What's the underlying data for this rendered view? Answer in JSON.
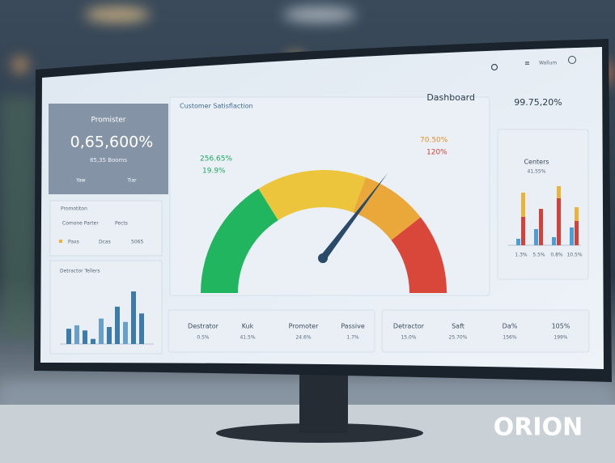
{
  "topbar": {
    "user": "Wallum"
  },
  "kpi": {
    "label": "Promister",
    "value": "0,65,600%",
    "sub": "85,35 Booms",
    "items": [
      "Yaw",
      "Tiar"
    ]
  },
  "summary": {
    "title": "Promotiton",
    "columns": [
      "Comone Parter",
      "Pects"
    ],
    "row": [
      "Paxs",
      "Dcas",
      "5065"
    ]
  },
  "detractor_chart": {
    "title": "Detractor Tellers",
    "values": [
      18,
      22,
      16,
      6,
      30,
      20,
      44,
      26,
      62,
      36
    ]
  },
  "gauge": {
    "title": "Customer Satisflaction",
    "heading": "Dashboard",
    "labels": [
      "256.65%",
      "19.9%",
      "70.50%",
      "120%"
    ]
  },
  "centers": {
    "headline": "99.75,20%",
    "title": "Centers",
    "subtitle": "41,55%",
    "categories": [
      "1.3%",
      "5.5%",
      "0.8%",
      "10.5%"
    ],
    "series": [
      {
        "color": "#4a9fd8",
        "values": [
          8,
          20,
          10,
          22
        ]
      },
      {
        "color": "#d2423a",
        "values": [
          35,
          45,
          58,
          30
        ]
      },
      {
        "color": "#eab43a",
        "values": [
          30,
          0,
          15,
          17
        ]
      }
    ]
  },
  "metrics": [
    {
      "label": "Destrator",
      "value": "0.5%"
    },
    {
      "label": "Kuk",
      "value": "41.5%"
    },
    {
      "label": "Promoter",
      "value": "24.6%"
    },
    {
      "label": "Passive",
      "value": "1.7%"
    },
    {
      "label": "Detractor",
      "value": "15.0%"
    },
    {
      "label": "Saft",
      "value": "25.70%"
    },
    {
      "label": "Da%",
      "value": "156%"
    },
    {
      "label": "105%",
      "value": "199%"
    }
  ],
  "logo": "ORION"
}
